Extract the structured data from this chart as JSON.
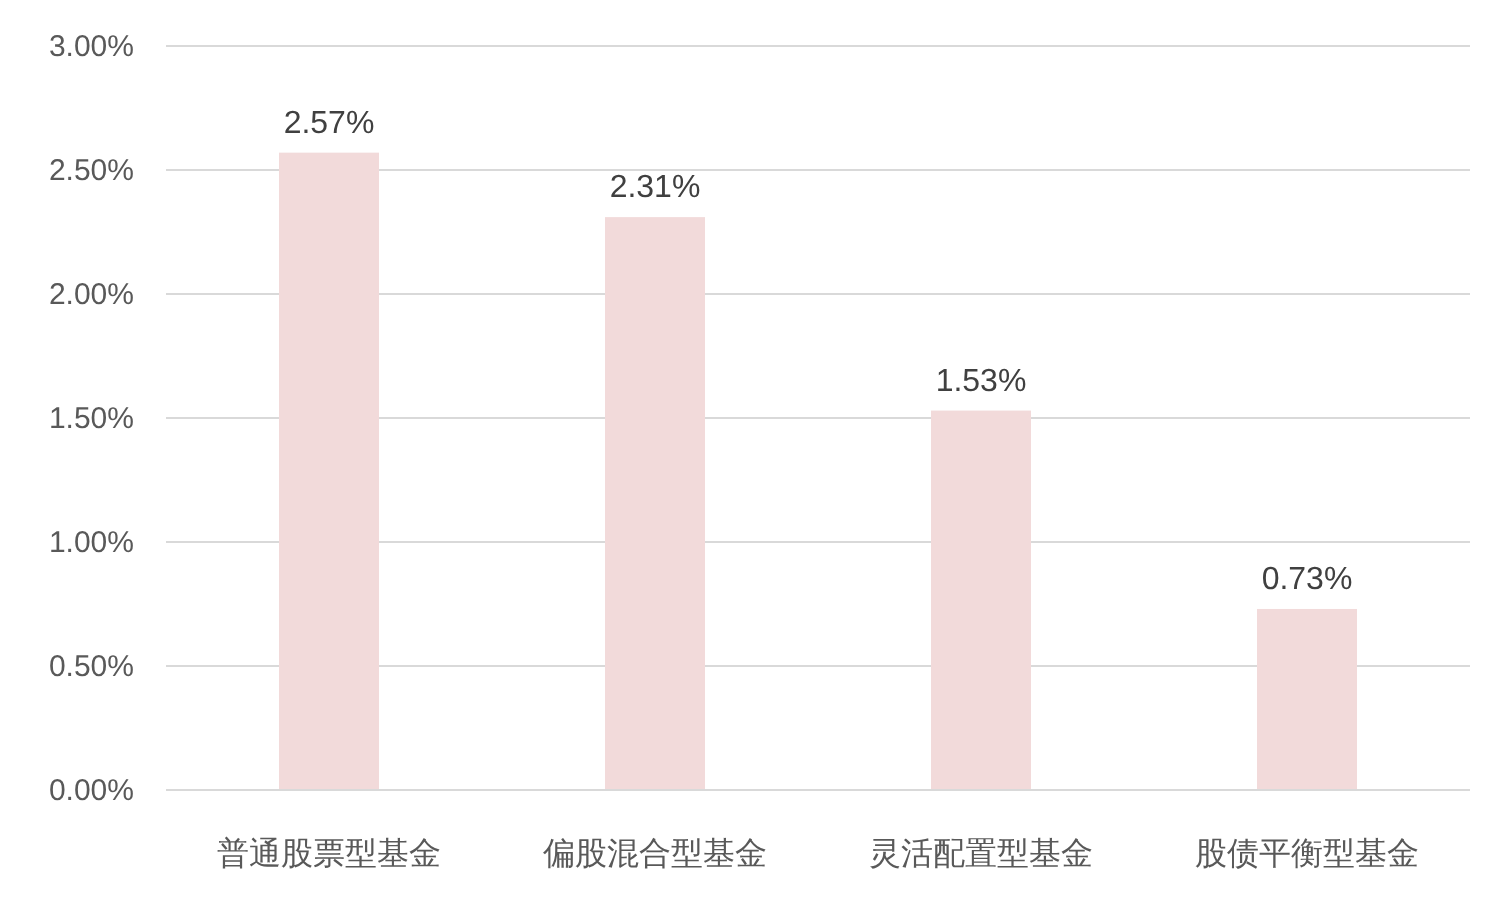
{
  "chart_data": {
    "type": "bar",
    "categories": [
      "普通股票型基金",
      "偏股混合型基金",
      "灵活配置型基金",
      "股债平衡型基金"
    ],
    "values": [
      2.57,
      2.31,
      1.53,
      0.73
    ],
    "color": "#f2dada",
    "value_labels": [
      "2.57%",
      "2.31%",
      "1.53%",
      "0.73%"
    ],
    "ylim": [
      0,
      3
    ],
    "yticks": [
      {
        "value": 0,
        "label": "0.00%"
      },
      {
        "value": 0.5,
        "label": "0.50%"
      },
      {
        "value": 1,
        "label": "1.00%"
      },
      {
        "value": 1.5,
        "label": "1.50%"
      },
      {
        "value": 2,
        "label": "2.00%"
      },
      {
        "value": 2.5,
        "label": "2.50%"
      },
      {
        "value": 3,
        "label": "3.00%"
      }
    ],
    "grid": "y"
  }
}
